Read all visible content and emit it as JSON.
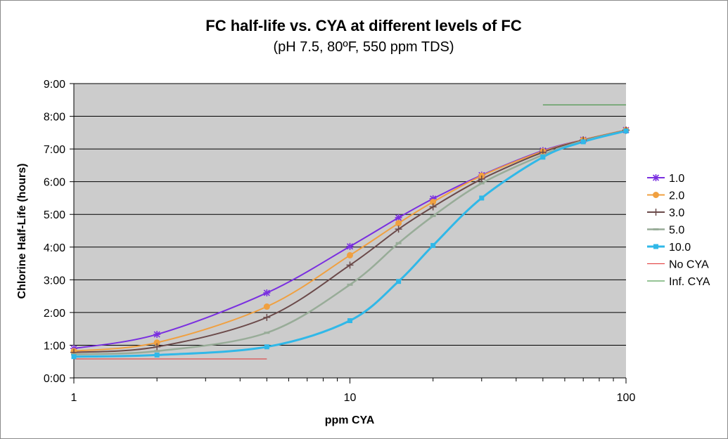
{
  "chart_data": {
    "type": "line",
    "title": "FC half-life vs. CYA at different levels of FC",
    "subtitle": "(pH 7.5, 80ºF, 550 ppm TDS)",
    "xlabel": "ppm CYA",
    "ylabel": "Chlorine Half-Life (hours)",
    "xscale": "log",
    "xlim": [
      1,
      100
    ],
    "ylim": [
      0,
      9
    ],
    "x_ticks": [
      "1",
      "10",
      "100"
    ],
    "y_ticks": [
      "0:00",
      "1:00",
      "2:00",
      "3:00",
      "4:00",
      "5:00",
      "6:00",
      "7:00",
      "8:00",
      "9:00"
    ],
    "y_unit": "hours",
    "plot_background": "#cccccc",
    "grid": "horizontal",
    "legend_position": "right",
    "series": [
      {
        "name": "1.0",
        "color": "#7a2fe0",
        "marker": "star",
        "x": [
          1,
          2,
          5,
          10,
          15,
          20,
          30,
          50,
          70,
          100
        ],
        "y": [
          0.9,
          1.33,
          2.6,
          4.02,
          4.9,
          5.48,
          6.2,
          6.95,
          7.28,
          7.58
        ]
      },
      {
        "name": "2.0",
        "color": "#f0a040",
        "marker": "circle",
        "x": [
          1,
          2,
          5,
          10,
          15,
          20,
          30,
          50,
          70,
          100
        ],
        "y": [
          0.82,
          1.08,
          2.18,
          3.75,
          4.73,
          5.38,
          6.18,
          6.93,
          7.28,
          7.58
        ]
      },
      {
        "name": "3.0",
        "color": "#6b4a4a",
        "marker": "plus",
        "x": [
          1,
          2,
          5,
          10,
          15,
          20,
          30,
          50,
          70,
          100
        ],
        "y": [
          0.78,
          0.95,
          1.85,
          3.45,
          4.55,
          5.23,
          6.08,
          6.9,
          7.27,
          7.57
        ]
      },
      {
        "name": "5.0",
        "color": "#98ac98",
        "marker": "dash",
        "x": [
          1,
          2,
          5,
          10,
          15,
          20,
          30,
          50,
          70,
          100
        ],
        "y": [
          0.72,
          0.82,
          1.38,
          2.85,
          4.12,
          4.95,
          5.95,
          6.82,
          7.25,
          7.56
        ]
      },
      {
        "name": "10.0",
        "color": "#30b8e8",
        "marker": "square",
        "x": [
          1,
          2,
          5,
          10,
          15,
          20,
          30,
          50,
          70,
          100
        ],
        "y": [
          0.65,
          0.7,
          0.95,
          1.75,
          2.95,
          4.05,
          5.5,
          6.75,
          7.22,
          7.55
        ]
      },
      {
        "name": "No CYA",
        "color": "#e03030",
        "marker": "none",
        "x": [
          1,
          5
        ],
        "y": [
          0.58,
          0.58
        ]
      },
      {
        "name": "Inf. CYA",
        "color": "#2e8a2e",
        "marker": "none",
        "x": [
          50,
          100
        ],
        "y": [
          8.35,
          8.35
        ]
      }
    ]
  }
}
